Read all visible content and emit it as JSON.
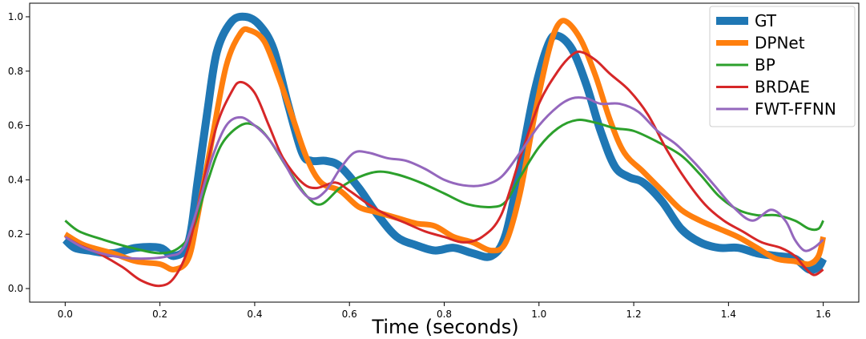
{
  "chart_data": {
    "type": "line",
    "title": "",
    "xlabel": "Time (seconds)",
    "ylabel": "",
    "xlim": [
      -0.075,
      1.675
    ],
    "ylim": [
      -0.05,
      1.05
    ],
    "xticks": [
      0.0,
      0.2,
      0.4,
      0.6,
      0.8,
      1.0,
      1.2,
      1.4,
      1.6
    ],
    "xtick_labels": [
      "0.0",
      "0.2",
      "0.4",
      "0.6",
      "0.8",
      "1.0",
      "1.2",
      "1.4",
      "1.6"
    ],
    "yticks": [
      0.0,
      0.2,
      0.4,
      0.6,
      0.8,
      1.0
    ],
    "ytick_labels": [
      "0.0",
      "0.2",
      "0.4",
      "0.6",
      "0.8",
      "1.0"
    ],
    "grid": false,
    "legend_position": "top-right",
    "series": [
      {
        "name": "GT",
        "color": "#1f77b4",
        "points": [
          [
            0.0,
            0.18
          ],
          [
            0.02,
            0.15
          ],
          [
            0.05,
            0.14
          ],
          [
            0.1,
            0.13
          ],
          [
            0.15,
            0.15
          ],
          [
            0.2,
            0.15
          ],
          [
            0.23,
            0.12
          ],
          [
            0.26,
            0.17
          ],
          [
            0.28,
            0.4
          ],
          [
            0.3,
            0.65
          ],
          [
            0.32,
            0.87
          ],
          [
            0.35,
            0.98
          ],
          [
            0.38,
            1.0
          ],
          [
            0.41,
            0.97
          ],
          [
            0.44,
            0.88
          ],
          [
            0.47,
            0.68
          ],
          [
            0.5,
            0.5
          ],
          [
            0.52,
            0.47
          ],
          [
            0.55,
            0.47
          ],
          [
            0.58,
            0.45
          ],
          [
            0.62,
            0.37
          ],
          [
            0.66,
            0.27
          ],
          [
            0.7,
            0.19
          ],
          [
            0.74,
            0.16
          ],
          [
            0.78,
            0.14
          ],
          [
            0.82,
            0.15
          ],
          [
            0.86,
            0.13
          ],
          [
            0.9,
            0.12
          ],
          [
            0.93,
            0.2
          ],
          [
            0.96,
            0.45
          ],
          [
            0.99,
            0.72
          ],
          [
            1.02,
            0.9
          ],
          [
            1.04,
            0.93
          ],
          [
            1.07,
            0.88
          ],
          [
            1.1,
            0.75
          ],
          [
            1.13,
            0.58
          ],
          [
            1.16,
            0.45
          ],
          [
            1.19,
            0.41
          ],
          [
            1.22,
            0.39
          ],
          [
            1.26,
            0.32
          ],
          [
            1.3,
            0.22
          ],
          [
            1.34,
            0.17
          ],
          [
            1.38,
            0.15
          ],
          [
            1.42,
            0.15
          ],
          [
            1.46,
            0.13
          ],
          [
            1.5,
            0.12
          ],
          [
            1.54,
            0.11
          ],
          [
            1.57,
            0.07
          ],
          [
            1.59,
            0.08
          ],
          [
            1.6,
            0.11
          ]
        ]
      },
      {
        "name": "DPNet",
        "color": "#ff7f0e",
        "points": [
          [
            0.0,
            0.2
          ],
          [
            0.04,
            0.16
          ],
          [
            0.1,
            0.13
          ],
          [
            0.15,
            0.1
          ],
          [
            0.2,
            0.09
          ],
          [
            0.23,
            0.07
          ],
          [
            0.26,
            0.11
          ],
          [
            0.28,
            0.27
          ],
          [
            0.31,
            0.55
          ],
          [
            0.34,
            0.82
          ],
          [
            0.37,
            0.94
          ],
          [
            0.39,
            0.95
          ],
          [
            0.42,
            0.91
          ],
          [
            0.45,
            0.78
          ],
          [
            0.48,
            0.63
          ],
          [
            0.51,
            0.48
          ],
          [
            0.54,
            0.39
          ],
          [
            0.58,
            0.36
          ],
          [
            0.62,
            0.3
          ],
          [
            0.66,
            0.28
          ],
          [
            0.7,
            0.26
          ],
          [
            0.74,
            0.24
          ],
          [
            0.78,
            0.23
          ],
          [
            0.82,
            0.19
          ],
          [
            0.86,
            0.17
          ],
          [
            0.9,
            0.14
          ],
          [
            0.93,
            0.17
          ],
          [
            0.96,
            0.35
          ],
          [
            0.99,
            0.63
          ],
          [
            1.02,
            0.87
          ],
          [
            1.04,
            0.97
          ],
          [
            1.06,
            0.98
          ],
          [
            1.09,
            0.91
          ],
          [
            1.12,
            0.78
          ],
          [
            1.15,
            0.62
          ],
          [
            1.18,
            0.5
          ],
          [
            1.22,
            0.43
          ],
          [
            1.26,
            0.36
          ],
          [
            1.3,
            0.29
          ],
          [
            1.34,
            0.25
          ],
          [
            1.38,
            0.22
          ],
          [
            1.42,
            0.19
          ],
          [
            1.46,
            0.15
          ],
          [
            1.5,
            0.11
          ],
          [
            1.54,
            0.1
          ],
          [
            1.57,
            0.09
          ],
          [
            1.59,
            0.12
          ],
          [
            1.6,
            0.19
          ]
        ]
      },
      {
        "name": "BP",
        "color": "#2ca02c",
        "points": [
          [
            0.0,
            0.25
          ],
          [
            0.03,
            0.21
          ],
          [
            0.08,
            0.18
          ],
          [
            0.14,
            0.15
          ],
          [
            0.2,
            0.13
          ],
          [
            0.24,
            0.15
          ],
          [
            0.27,
            0.22
          ],
          [
            0.3,
            0.39
          ],
          [
            0.33,
            0.53
          ],
          [
            0.37,
            0.6
          ],
          [
            0.4,
            0.6
          ],
          [
            0.43,
            0.55
          ],
          [
            0.47,
            0.44
          ],
          [
            0.51,
            0.34
          ],
          [
            0.54,
            0.31
          ],
          [
            0.58,
            0.37
          ],
          [
            0.62,
            0.41
          ],
          [
            0.66,
            0.43
          ],
          [
            0.7,
            0.42
          ],
          [
            0.75,
            0.39
          ],
          [
            0.8,
            0.35
          ],
          [
            0.85,
            0.31
          ],
          [
            0.9,
            0.3
          ],
          [
            0.93,
            0.32
          ],
          [
            0.96,
            0.41
          ],
          [
            1.0,
            0.52
          ],
          [
            1.04,
            0.59
          ],
          [
            1.08,
            0.62
          ],
          [
            1.12,
            0.61
          ],
          [
            1.16,
            0.59
          ],
          [
            1.2,
            0.58
          ],
          [
            1.25,
            0.54
          ],
          [
            1.3,
            0.49
          ],
          [
            1.34,
            0.42
          ],
          [
            1.38,
            0.34
          ],
          [
            1.42,
            0.29
          ],
          [
            1.46,
            0.27
          ],
          [
            1.5,
            0.27
          ],
          [
            1.54,
            0.25
          ],
          [
            1.57,
            0.22
          ],
          [
            1.59,
            0.22
          ],
          [
            1.6,
            0.25
          ]
        ]
      },
      {
        "name": "BRDAE",
        "color": "#d62728",
        "points": [
          [
            0.0,
            0.19
          ],
          [
            0.03,
            0.16
          ],
          [
            0.07,
            0.13
          ],
          [
            0.12,
            0.08
          ],
          [
            0.16,
            0.03
          ],
          [
            0.2,
            0.01
          ],
          [
            0.23,
            0.04
          ],
          [
            0.26,
            0.15
          ],
          [
            0.29,
            0.38
          ],
          [
            0.32,
            0.6
          ],
          [
            0.35,
            0.72
          ],
          [
            0.37,
            0.76
          ],
          [
            0.4,
            0.72
          ],
          [
            0.43,
            0.6
          ],
          [
            0.46,
            0.48
          ],
          [
            0.5,
            0.39
          ],
          [
            0.53,
            0.37
          ],
          [
            0.57,
            0.39
          ],
          [
            0.6,
            0.36
          ],
          [
            0.64,
            0.31
          ],
          [
            0.68,
            0.27
          ],
          [
            0.72,
            0.24
          ],
          [
            0.76,
            0.21
          ],
          [
            0.8,
            0.19
          ],
          [
            0.84,
            0.17
          ],
          [
            0.88,
            0.19
          ],
          [
            0.92,
            0.27
          ],
          [
            0.96,
            0.48
          ],
          [
            1.0,
            0.68
          ],
          [
            1.04,
            0.8
          ],
          [
            1.07,
            0.86
          ],
          [
            1.09,
            0.87
          ],
          [
            1.12,
            0.84
          ],
          [
            1.15,
            0.79
          ],
          [
            1.19,
            0.73
          ],
          [
            1.23,
            0.64
          ],
          [
            1.27,
            0.51
          ],
          [
            1.31,
            0.4
          ],
          [
            1.35,
            0.31
          ],
          [
            1.39,
            0.25
          ],
          [
            1.43,
            0.21
          ],
          [
            1.47,
            0.17
          ],
          [
            1.51,
            0.15
          ],
          [
            1.54,
            0.12
          ],
          [
            1.56,
            0.08
          ],
          [
            1.58,
            0.05
          ],
          [
            1.6,
            0.07
          ]
        ]
      },
      {
        "name": "FWT-FFNN",
        "color": "#9467bd",
        "points": [
          [
            0.0,
            0.19
          ],
          [
            0.04,
            0.15
          ],
          [
            0.1,
            0.12
          ],
          [
            0.16,
            0.11
          ],
          [
            0.22,
            0.12
          ],
          [
            0.25,
            0.15
          ],
          [
            0.28,
            0.3
          ],
          [
            0.31,
            0.48
          ],
          [
            0.34,
            0.6
          ],
          [
            0.37,
            0.63
          ],
          [
            0.4,
            0.6
          ],
          [
            0.43,
            0.55
          ],
          [
            0.46,
            0.47
          ],
          [
            0.49,
            0.38
          ],
          [
            0.52,
            0.33
          ],
          [
            0.55,
            0.36
          ],
          [
            0.58,
            0.44
          ],
          [
            0.61,
            0.5
          ],
          [
            0.64,
            0.5
          ],
          [
            0.68,
            0.48
          ],
          [
            0.72,
            0.47
          ],
          [
            0.76,
            0.44
          ],
          [
            0.8,
            0.4
          ],
          [
            0.84,
            0.38
          ],
          [
            0.88,
            0.38
          ],
          [
            0.92,
            0.41
          ],
          [
            0.96,
            0.5
          ],
          [
            1.0,
            0.6
          ],
          [
            1.04,
            0.67
          ],
          [
            1.07,
            0.7
          ],
          [
            1.1,
            0.7
          ],
          [
            1.13,
            0.68
          ],
          [
            1.17,
            0.68
          ],
          [
            1.21,
            0.65
          ],
          [
            1.25,
            0.58
          ],
          [
            1.29,
            0.53
          ],
          [
            1.33,
            0.46
          ],
          [
            1.37,
            0.38
          ],
          [
            1.41,
            0.3
          ],
          [
            1.45,
            0.25
          ],
          [
            1.49,
            0.29
          ],
          [
            1.52,
            0.25
          ],
          [
            1.54,
            0.18
          ],
          [
            1.56,
            0.14
          ],
          [
            1.58,
            0.15
          ],
          [
            1.6,
            0.18
          ]
        ]
      }
    ]
  }
}
